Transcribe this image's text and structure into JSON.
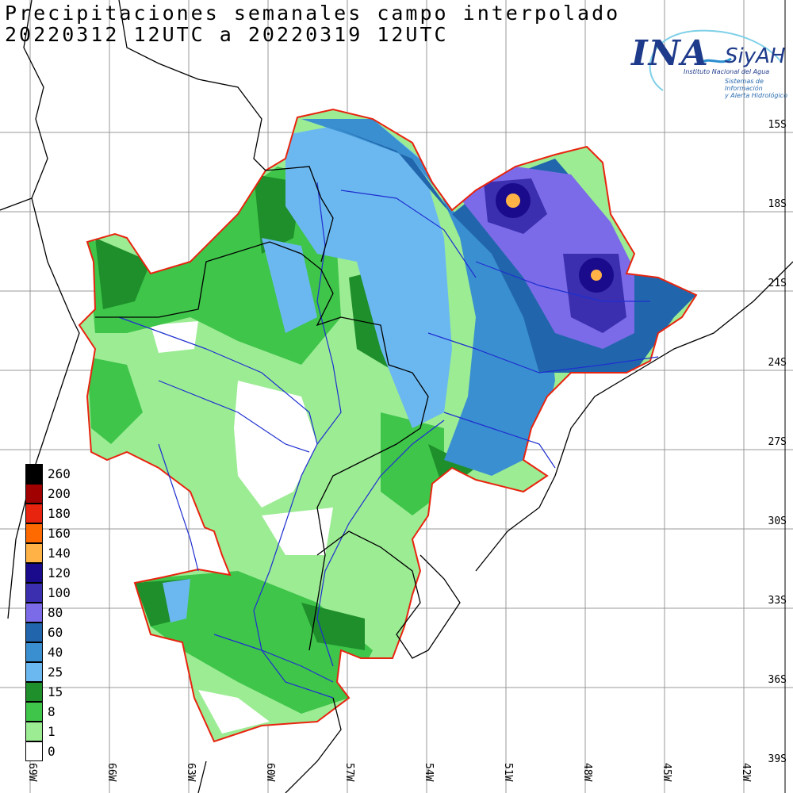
{
  "title": {
    "line1": "Precipitaciones semanales campo interpolado",
    "line2": "20220312 12UTC a 20220319 12UTC"
  },
  "logo": {
    "acronym": "INA",
    "system": "SiyAH",
    "institute": "Instituto Nacional del Agua",
    "system_line1": "Sistemas de Información",
    "system_line2": "y Alerta Hidrológico"
  },
  "lat_labels": [
    "15S",
    "18S",
    "21S",
    "24S",
    "27S",
    "30S",
    "33S",
    "36S",
    "39S"
  ],
  "lon_labels": [
    "69W",
    "66W",
    "63W",
    "60W",
    "57W",
    "54W",
    "51W",
    "48W",
    "45W",
    "42W"
  ],
  "legend": [
    {
      "value": "260",
      "color": "#000000"
    },
    {
      "value": "200",
      "color": "#a10000"
    },
    {
      "value": "180",
      "color": "#e8240f"
    },
    {
      "value": "160",
      "color": "#ff6a00"
    },
    {
      "value": "140",
      "color": "#ffb347"
    },
    {
      "value": "120",
      "color": "#1a0a8c"
    },
    {
      "value": "100",
      "color": "#3b2fb0"
    },
    {
      "value": "80",
      "color": "#7b6be8"
    },
    {
      "value": "60",
      "color": "#2166ac"
    },
    {
      "value": "40",
      "color": "#3a8fd0"
    },
    {
      "value": "25",
      "color": "#6bb8f0"
    },
    {
      "value": "15",
      "color": "#1e8f2a"
    },
    {
      "value": "8",
      "color": "#3fc54a"
    },
    {
      "value": "1",
      "color": "#9cec94"
    },
    {
      "value": "0",
      "color": "#ffffff"
    }
  ]
}
